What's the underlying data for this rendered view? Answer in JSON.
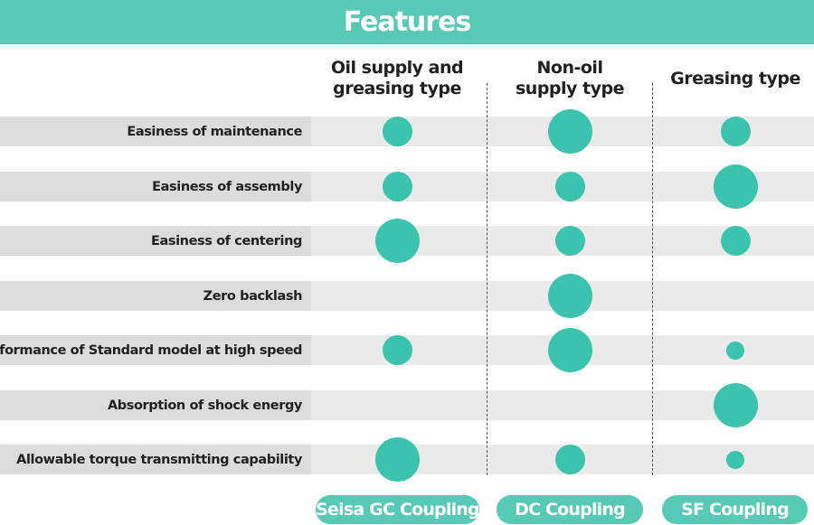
{
  "title": "Features",
  "columns": [
    {
      "label": "Oil supply and\ngreasing type",
      "product": "Seisa GC Coupling"
    },
    {
      "label": "Non-oil\nsupply type",
      "product": "DC Coupling"
    },
    {
      "label": "Greasing type",
      "product": "SF Coupling"
    }
  ],
  "rows": [
    {
      "label": "Easiness of maintenance",
      "ratings": [
        "medium",
        "large",
        "medium"
      ]
    },
    {
      "label": "Easiness of assembly",
      "ratings": [
        "medium",
        "medium",
        "large"
      ]
    },
    {
      "label": "Easiness of centering",
      "ratings": [
        "large",
        "medium",
        "medium"
      ]
    },
    {
      "label": "Zero backlash",
      "ratings": [
        "none",
        "large",
        "none"
      ]
    },
    {
      "label": "Performance of Standard model at high speed",
      "ratings": [
        "medium",
        "large",
        "small"
      ]
    },
    {
      "label": "Absorption of shock energy",
      "ratings": [
        "none",
        "none",
        "large"
      ]
    },
    {
      "label": "Allowable torque transmitting capability",
      "ratings": [
        "large",
        "medium",
        "small"
      ]
    }
  ],
  "colors": {
    "accent": "#56cab5",
    "dot": "#3cc3ad",
    "row_label_bg": "#dcdcdd",
    "row_bg": "#eaeaeb"
  }
}
